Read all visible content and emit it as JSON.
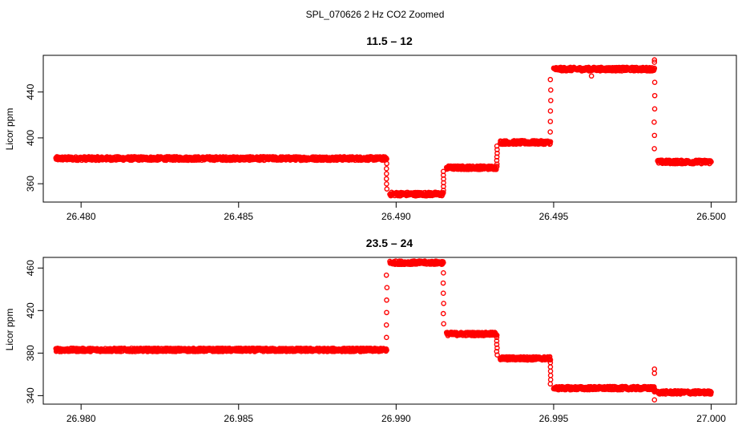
{
  "figure": {
    "title": "SPL_070626  2 Hz CO2 Zoomed"
  },
  "chart_data": [
    {
      "type": "scatter",
      "title": "11.5 – 12",
      "xlabel": "",
      "ylabel": "Licor ppm",
      "xlim": [
        26.4788,
        26.5008
      ],
      "ylim": [
        344,
        472
      ],
      "xticks": [
        26.48,
        26.485,
        26.49,
        26.495,
        26.5
      ],
      "xtick_labels": [
        "26.480",
        "26.485",
        "26.490",
        "26.495",
        "26.500"
      ],
      "yticks": [
        360,
        400,
        440
      ],
      "ytick_labels": [
        "360",
        "400",
        "440"
      ],
      "grid": false,
      "marker": "open-circle",
      "color": "#ff0000",
      "segments": [
        {
          "x_start": 26.4792,
          "x_end": 26.4897,
          "y": 382
        },
        {
          "x_start": 26.4898,
          "x_end": 26.4915,
          "y": 351
        },
        {
          "x_start": 26.4916,
          "x_end": 26.4932,
          "y": 374
        },
        {
          "x_start": 26.4933,
          "x_end": 26.4949,
          "y": 396
        },
        {
          "x_start": 26.495,
          "x_end": 26.4982,
          "y": 460
        },
        {
          "x_start": 26.4983,
          "x_end": 26.5,
          "y": 379
        }
      ],
      "transitions": [
        {
          "x": 26.4897,
          "from": 382,
          "to": 351
        },
        {
          "x": 26.4915,
          "from": 351,
          "to": 374
        },
        {
          "x": 26.4932,
          "from": 374,
          "to": 396
        },
        {
          "x": 26.4949,
          "from": 396,
          "to": 460
        },
        {
          "x": 26.4982,
          "from": 460,
          "to": 379
        }
      ],
      "outliers": [
        {
          "x": 26.4962,
          "y": 454
        },
        {
          "x": 26.4982,
          "y": 466
        },
        {
          "x": 26.4982,
          "y": 468
        }
      ]
    },
    {
      "type": "scatter",
      "title": "23.5 – 24",
      "xlabel": "",
      "ylabel": "Licor ppm",
      "xlim": [
        26.9788,
        27.0008
      ],
      "ylim": [
        332,
        470
      ],
      "xticks": [
        26.98,
        26.985,
        26.99,
        26.995,
        27.0
      ],
      "xtick_labels": [
        "26.980",
        "26.985",
        "26.990",
        "26.995",
        "27.000"
      ],
      "yticks": [
        340,
        380,
        420,
        460
      ],
      "ytick_labels": [
        "340",
        "380",
        "420",
        "460"
      ],
      "grid": false,
      "marker": "open-circle",
      "color": "#ff0000",
      "segments": [
        {
          "x_start": 26.9792,
          "x_end": 26.9897,
          "y": 383
        },
        {
          "x_start": 26.9898,
          "x_end": 26.9915,
          "y": 465
        },
        {
          "x_start": 26.9916,
          "x_end": 26.9932,
          "y": 398
        },
        {
          "x_start": 26.9933,
          "x_end": 26.9949,
          "y": 375
        },
        {
          "x_start": 26.995,
          "x_end": 26.9982,
          "y": 347
        },
        {
          "x_start": 26.9983,
          "x_end": 27.0,
          "y": 343
        }
      ],
      "transitions": [
        {
          "x": 26.9897,
          "from": 383,
          "to": 465
        },
        {
          "x": 26.9915,
          "from": 465,
          "to": 398
        },
        {
          "x": 26.9932,
          "from": 398,
          "to": 375
        },
        {
          "x": 26.9949,
          "from": 375,
          "to": 347
        },
        {
          "x": 26.9982,
          "from": 347,
          "to": 343
        }
      ],
      "outliers": [
        {
          "x": 26.9982,
          "y": 365
        },
        {
          "x": 26.9982,
          "y": 361
        },
        {
          "x": 26.9982,
          "y": 336
        }
      ]
    }
  ]
}
